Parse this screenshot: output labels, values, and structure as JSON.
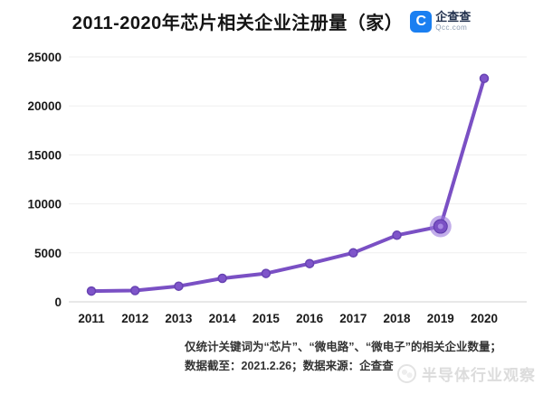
{
  "header": {
    "title": "2011-2020年芯片相关企业注册量（家）",
    "logo": {
      "name": "企查查",
      "domain": "Qcc.com",
      "icon_letter": "C",
      "brand_color": "#1a7ff1"
    }
  },
  "chart_data": {
    "type": "line",
    "title": "2011-2020年芯片相关企业注册量（家）",
    "categories": [
      "2011",
      "2012",
      "2013",
      "2014",
      "2015",
      "2016",
      "2017",
      "2018",
      "2019",
      "2020"
    ],
    "series": [
      {
        "name": "芯片相关企业注册量（家）",
        "values": [
          1100,
          1150,
          1600,
          2400,
          2900,
          3900,
          5000,
          6800,
          7700,
          22800
        ]
      }
    ],
    "ylim": [
      0,
      25000
    ],
    "yticks": [
      0,
      5000,
      10000,
      15000,
      20000,
      25000
    ],
    "grid": true,
    "legend_position": "none",
    "highlight_index": 8,
    "colors": {
      "line": "#7a50c4",
      "marker_fill": "#7f55ca",
      "marker_stroke": "#6743b2",
      "highlight_halo": "#9977dc",
      "gridline": "#efefef",
      "baseline": "#d9d9d9",
      "tick_label": "#1a1a1a"
    }
  },
  "footer": {
    "line1": "仅统计关键词为“芯片”、“微电路”、“微电子”的相关企业数量；",
    "line2": "数据截至：2021.2.26；数据来源：企查查"
  },
  "watermark": {
    "text": "半导体行业观察"
  }
}
